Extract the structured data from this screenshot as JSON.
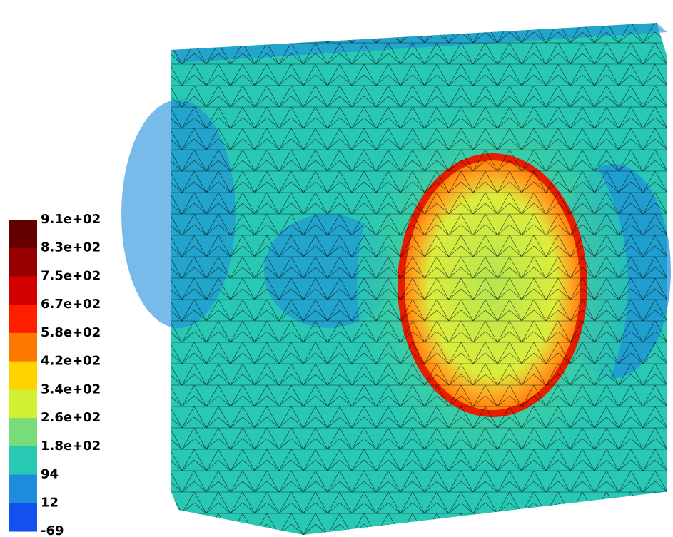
{
  "colorbar": {
    "labels": [
      "9.1e+02",
      "8.3e+02",
      "7.5e+02",
      "6.7e+02",
      "5.8e+02",
      "4.2e+02",
      "3.4e+02",
      "2.6e+02",
      "1.8e+02",
      "94",
      "12",
      "-69"
    ],
    "colors": [
      "#640000",
      "#960000",
      "#d20000",
      "#ff1e00",
      "#ff7800",
      "#ffd200",
      "#d2f032",
      "#78dc78",
      "#28c8b4",
      "#1e8cdc",
      "#1450f0"
    ]
  }
}
